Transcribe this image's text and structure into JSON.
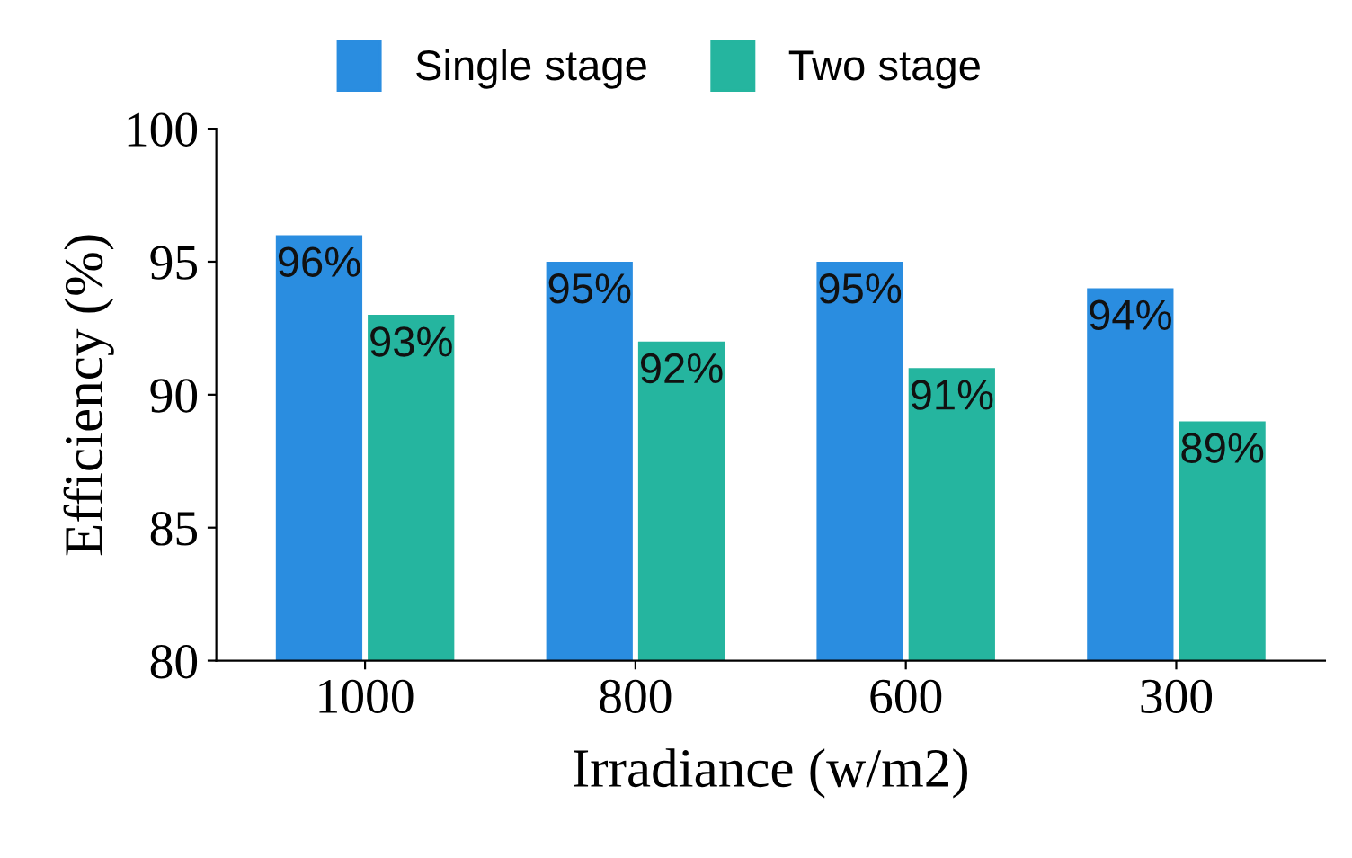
{
  "chart_data": {
    "type": "bar",
    "xlabel": "Irradiance (w/m2)",
    "ylabel": "Efficiency (%)",
    "categories": [
      "1000",
      "800",
      "600",
      "300"
    ],
    "series": [
      {
        "name": "Single stage",
        "color": "#2a8de0",
        "values": [
          96,
          95,
          95,
          94
        ],
        "value_labels": [
          "96%",
          "95%",
          "95%",
          "94%"
        ]
      },
      {
        "name": "Two stage",
        "color": "#25b59f",
        "values": [
          93,
          92,
          91,
          89
        ],
        "value_labels": [
          "93%",
          "92%",
          "91%",
          "89%"
        ]
      }
    ],
    "ylim": [
      80,
      100
    ],
    "yticks": [
      80,
      85,
      90,
      95,
      100
    ],
    "grid": false,
    "legend": "top"
  }
}
